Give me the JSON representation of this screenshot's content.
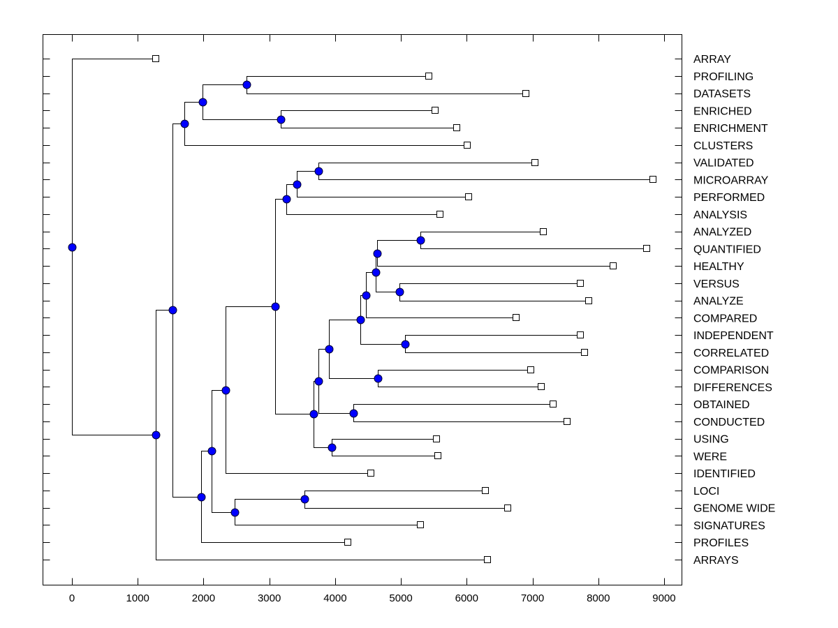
{
  "chart_data": {
    "type": "dendrogram",
    "title": "",
    "xlabel": "",
    "ylabel": "",
    "xlim": [
      -450,
      9300
    ],
    "xticks": [
      0,
      1000,
      2000,
      3000,
      4000,
      5000,
      6000,
      7000,
      8000,
      9000
    ],
    "grid": false,
    "colors": {
      "node": "#0000ff",
      "leaf": "#ffffff",
      "line": "#000000"
    },
    "leaves": [
      {
        "label": "ARRAY",
        "value": 1270
      },
      {
        "label": "PROFILING",
        "value": 5420
      },
      {
        "label": "DATASETS",
        "value": 6900
      },
      {
        "label": "ENRICHED",
        "value": 5520
      },
      {
        "label": "ENRICHMENT",
        "value": 5850
      },
      {
        "label": "CLUSTERS",
        "value": 6010
      },
      {
        "label": "VALIDATED",
        "value": 7040
      },
      {
        "label": "MICROARRAY",
        "value": 8830
      },
      {
        "label": "PERFORMED",
        "value": 6030
      },
      {
        "label": "ANALYSIS",
        "value": 5590
      },
      {
        "label": "ANALYZED",
        "value": 7160
      },
      {
        "label": "QUANTIFIED",
        "value": 8740
      },
      {
        "label": "HEALTHY",
        "value": 8230
      },
      {
        "label": "VERSUS",
        "value": 7730
      },
      {
        "label": "ANALYZE",
        "value": 7850
      },
      {
        "label": "COMPARED",
        "value": 6750
      },
      {
        "label": "INDEPENDENT",
        "value": 7730
      },
      {
        "label": "CORRELATED",
        "value": 7790
      },
      {
        "label": "COMPARISON",
        "value": 6970
      },
      {
        "label": "DIFFERENCES",
        "value": 7130
      },
      {
        "label": "OBTAINED",
        "value": 7310
      },
      {
        "label": "CONDUCTED",
        "value": 7530
      },
      {
        "label": "USING",
        "value": 5540
      },
      {
        "label": "WERE",
        "value": 5560
      },
      {
        "label": "IDENTIFIED",
        "value": 4540
      },
      {
        "label": "LOCI",
        "value": 6280
      },
      {
        "label": "GENOME WIDE",
        "value": 6620
      },
      {
        "label": "SIGNATURES",
        "value": 5300
      },
      {
        "label": "PROFILES",
        "value": 4190
      },
      {
        "label": "ARRAYS",
        "value": 6320
      }
    ],
    "nodes": [
      {
        "id": "root",
        "value": 0,
        "children": [
          "L0",
          "A"
        ]
      },
      {
        "id": "A",
        "value": 1270,
        "children": [
          "B",
          "L29"
        ]
      },
      {
        "id": "B",
        "value": 1530,
        "children": [
          "C",
          "D"
        ]
      },
      {
        "id": "C",
        "value": 1710,
        "children": [
          "E",
          "L5"
        ]
      },
      {
        "id": "E",
        "value": 1985,
        "children": [
          "F",
          "G"
        ]
      },
      {
        "id": "F",
        "value": 2650,
        "children": [
          "L1",
          "L2"
        ]
      },
      {
        "id": "G",
        "value": 3170,
        "children": [
          "L3",
          "L4"
        ]
      },
      {
        "id": "D",
        "value": 1965,
        "children": [
          "H",
          "L28"
        ]
      },
      {
        "id": "H",
        "value": 2120,
        "children": [
          "I",
          "J"
        ]
      },
      {
        "id": "I",
        "value": 2335,
        "children": [
          "K",
          "L24"
        ]
      },
      {
        "id": "J",
        "value": 2475,
        "children": [
          "Lc",
          "L27"
        ]
      },
      {
        "id": "Lc",
        "value": 3535,
        "children": [
          "L25",
          "L26"
        ]
      },
      {
        "id": "K",
        "value": 3090,
        "children": [
          "M",
          "N"
        ]
      },
      {
        "id": "M",
        "value": 3260,
        "children": [
          "O",
          "L9"
        ]
      },
      {
        "id": "O",
        "value": 3420,
        "children": [
          "P",
          "L8"
        ]
      },
      {
        "id": "P",
        "value": 3745,
        "children": [
          "L6",
          "L7"
        ]
      },
      {
        "id": "N",
        "value": 3670,
        "children": [
          "Q",
          "R"
        ]
      },
      {
        "id": "R",
        "value": 3950,
        "children": [
          "L22",
          "L23"
        ]
      },
      {
        "id": "Q",
        "value": 3745,
        "children": [
          "S",
          "T"
        ]
      },
      {
        "id": "T",
        "value": 4280,
        "children": [
          "L20",
          "L21"
        ]
      },
      {
        "id": "S",
        "value": 3905,
        "children": [
          "U",
          "V"
        ]
      },
      {
        "id": "V",
        "value": 4650,
        "children": [
          "L18",
          "L19"
        ]
      },
      {
        "id": "U",
        "value": 4385,
        "children": [
          "W",
          "X"
        ]
      },
      {
        "id": "X",
        "value": 5065,
        "children": [
          "L16",
          "L17"
        ]
      },
      {
        "id": "W",
        "value": 4470,
        "children": [
          "Y",
          "L15"
        ]
      },
      {
        "id": "Y",
        "value": 4620,
        "children": [
          "Z",
          "AA"
        ]
      },
      {
        "id": "AA",
        "value": 4980,
        "children": [
          "L13",
          "L14"
        ]
      },
      {
        "id": "Z",
        "value": 4640,
        "children": [
          "AB",
          "L12"
        ]
      },
      {
        "id": "AB",
        "value": 5300,
        "children": [
          "L10",
          "L11"
        ]
      }
    ]
  }
}
